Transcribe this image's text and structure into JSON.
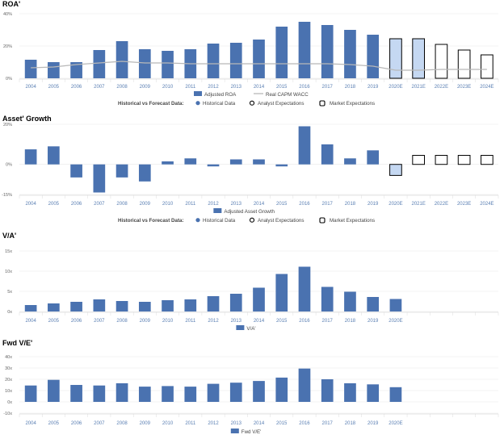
{
  "colors": {
    "historical": "#4a72b0",
    "analyst": "#c5d8f2",
    "wacc": "#b8b8b8",
    "axis_text": "#5a7fb3",
    "grid": "#e8e8e8"
  },
  "legend_common": {
    "heading": "Historical vs Forecast Data:",
    "historical": "Historical Data",
    "analyst": "Analyst Expectations",
    "market": "Market Expectations"
  },
  "chart_data": [
    {
      "type": "bar",
      "title": "ROA'",
      "categories": [
        "2004",
        "2005",
        "2006",
        "2007",
        "2008",
        "2009",
        "2010",
        "2011",
        "2012",
        "2013",
        "2014",
        "2015",
        "2016",
        "2017",
        "2018",
        "2019",
        "2020E",
        "2021E",
        "2022E",
        "2023E",
        "2024E"
      ],
      "series": [
        {
          "name": "Adjusted ROA",
          "values": [
            11.5,
            10,
            10,
            17.5,
            23,
            18,
            17,
            18,
            21.5,
            22,
            24,
            32,
            35,
            33,
            30,
            27,
            24.5,
            24.5,
            21,
            17.5,
            14.5
          ]
        },
        {
          "name": "Real CAPM WACC",
          "type": "line",
          "values": [
            6.5,
            7,
            8.5,
            9.5,
            10.5,
            9.5,
            9.5,
            9,
            9,
            9,
            9,
            9,
            9,
            9,
            8.5,
            7.5,
            5,
            5,
            5.5,
            5.5,
            5.5
          ]
        }
      ],
      "bar_kind": [
        "h",
        "h",
        "h",
        "h",
        "h",
        "h",
        "h",
        "h",
        "h",
        "h",
        "h",
        "h",
        "h",
        "h",
        "h",
        "h",
        "a",
        "a",
        "m",
        "m",
        "m"
      ],
      "ytick_labels": [
        "40%",
        "20%",
        "0%"
      ],
      "yticks": [
        40,
        20,
        0
      ],
      "ylim": [
        0,
        40
      ],
      "legend_top": [
        "Adjusted ROA",
        "Real CAPM WACC"
      ],
      "has_forecast_legend": true
    },
    {
      "type": "bar",
      "title": "Asset' Growth",
      "categories": [
        "2004",
        "2005",
        "2006",
        "2007",
        "2008",
        "2009",
        "2010",
        "2011",
        "2012",
        "2013",
        "2014",
        "2015",
        "2016",
        "2017",
        "2018",
        "2019",
        "2020E",
        "2021E",
        "2022E",
        "2023E",
        "2024E"
      ],
      "series": [
        {
          "name": "Adjusted Asset Growth",
          "values": [
            7.5,
            9,
            -6.5,
            -14,
            -6.5,
            -8.5,
            1.5,
            3,
            -1,
            2.5,
            2.5,
            -1,
            19,
            10,
            3,
            7,
            -5.5,
            4.5,
            4.5,
            4.5,
            4.5
          ]
        }
      ],
      "bar_kind": [
        "h",
        "h",
        "h",
        "h",
        "h",
        "h",
        "h",
        "h",
        "h",
        "h",
        "h",
        "h",
        "h",
        "h",
        "h",
        "h",
        "a",
        "m",
        "m",
        "m",
        "m"
      ],
      "ytick_labels": [
        "20%",
        "0%",
        "-15%"
      ],
      "yticks": [
        20,
        0,
        -15
      ],
      "ylim": [
        -15,
        20
      ],
      "legend_top": [
        "Adjusted Asset Growth"
      ],
      "has_forecast_legend": true
    },
    {
      "type": "bar",
      "title": "V/A'",
      "categories": [
        "2004",
        "2005",
        "2006",
        "2007",
        "2008",
        "2009",
        "2010",
        "2011",
        "2012",
        "2013",
        "2014",
        "2015",
        "2016",
        "2017",
        "2018",
        "2019",
        "2020E",
        "",
        "",
        "",
        ""
      ],
      "series": [
        {
          "name": "V/A'",
          "values": [
            1.6,
            2,
            2.4,
            3,
            2.6,
            2.4,
            2.8,
            3,
            3.8,
            4.4,
            5.9,
            9.3,
            11.1,
            6.1,
            4.9,
            3.6,
            3.1,
            null,
            null,
            null,
            null
          ]
        }
      ],
      "ytick_labels": [
        "15x",
        "10x",
        "5x",
        "0x"
      ],
      "yticks": [
        15,
        10,
        5,
        0
      ],
      "ylim": [
        0,
        15
      ],
      "legend_top": [
        "V/A'"
      ],
      "has_forecast_legend": false
    },
    {
      "type": "bar",
      "title": "Fwd V/E'",
      "categories": [
        "2004",
        "2005",
        "2006",
        "2007",
        "2008",
        "2009",
        "2010",
        "2011",
        "2012",
        "2013",
        "2014",
        "2015",
        "2016",
        "2017",
        "2018",
        "2019",
        "2020E",
        "",
        "",
        "",
        ""
      ],
      "series": [
        {
          "name": "Fwd V/E'",
          "values": [
            14.5,
            19.5,
            15,
            14.5,
            16.5,
            13.5,
            14,
            13.5,
            16,
            17,
            18.5,
            21.5,
            29.5,
            20,
            16.5,
            15.5,
            13,
            null,
            null,
            null,
            null
          ]
        }
      ],
      "ytick_labels": [
        "40x",
        "30x",
        "20x",
        "10x",
        "0x",
        "-10x"
      ],
      "yticks": [
        40,
        30,
        20,
        10,
        0,
        -10
      ],
      "ylim": [
        -10,
        40
      ],
      "legend_top": [
        "Fwd V/E'"
      ],
      "has_forecast_legend": false
    }
  ]
}
